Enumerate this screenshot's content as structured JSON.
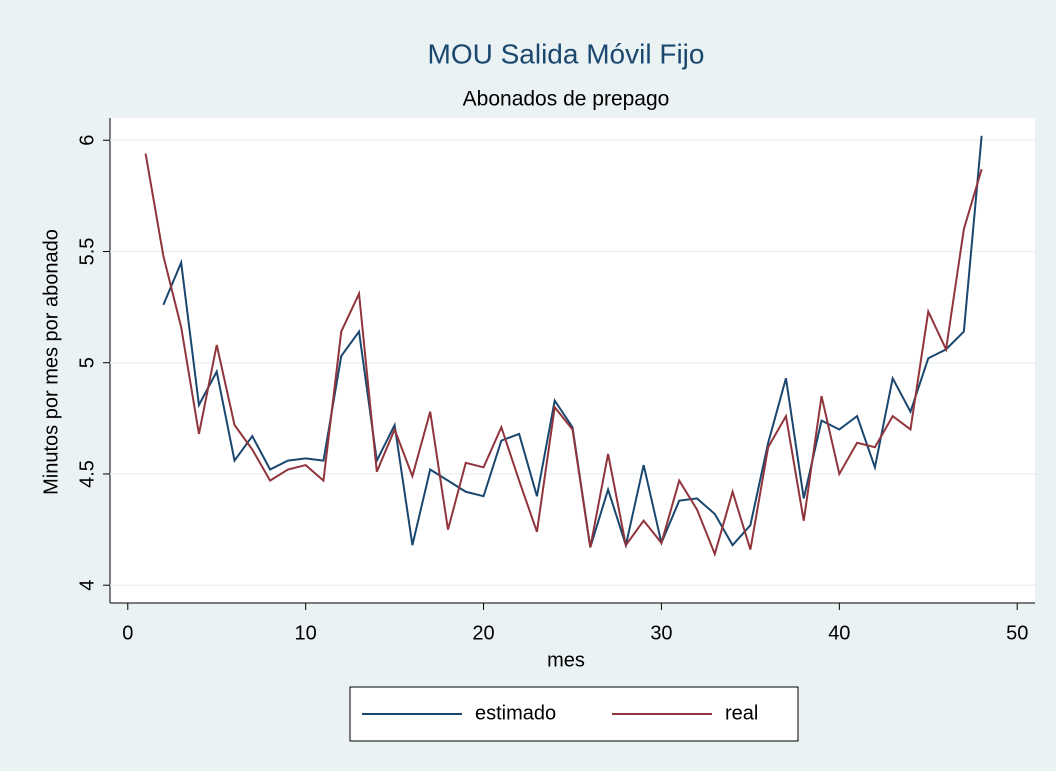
{
  "chart_data": {
    "type": "line",
    "title": "MOU Salida Móvil Fijo",
    "subtitle": "Abonados de prepago",
    "x_label": "mes",
    "y_label": "Minutos por mes por abonado",
    "x": [
      1,
      2,
      3,
      4,
      5,
      6,
      7,
      8,
      9,
      10,
      11,
      12,
      13,
      14,
      15,
      16,
      17,
      18,
      19,
      20,
      21,
      22,
      23,
      24,
      25,
      26,
      27,
      28,
      29,
      30,
      31,
      32,
      33,
      34,
      35,
      36,
      37,
      38,
      39,
      40,
      41,
      42,
      43,
      44,
      45,
      46,
      47,
      48
    ],
    "series": [
      {
        "name": "estimado",
        "color": "#1a476f",
        "values": [
          null,
          5.26,
          5.45,
          4.81,
          4.96,
          4.56,
          4.67,
          4.52,
          4.56,
          4.57,
          4.56,
          5.03,
          5.14,
          4.56,
          4.72,
          4.18,
          4.52,
          4.47,
          4.42,
          4.4,
          4.65,
          4.68,
          4.4,
          4.83,
          4.71,
          4.17,
          4.43,
          4.18,
          4.54,
          4.19,
          4.38,
          4.39,
          4.32,
          4.18,
          4.27,
          4.64,
          4.93,
          4.39,
          4.74,
          4.7,
          4.76,
          4.53,
          4.93,
          4.78,
          5.02,
          5.06,
          5.14,
          6.02
        ]
      },
      {
        "name": "real",
        "color": "#90353b",
        "values": [
          5.94,
          5.48,
          5.16,
          4.68,
          5.08,
          4.72,
          4.61,
          4.47,
          4.52,
          4.54,
          4.47,
          5.14,
          5.31,
          4.51,
          4.7,
          4.49,
          4.78,
          4.25,
          4.55,
          4.53,
          4.71,
          4.47,
          4.24,
          4.8,
          4.7,
          4.17,
          4.59,
          4.18,
          4.29,
          4.19,
          4.47,
          4.34,
          4.14,
          4.42,
          4.16,
          4.62,
          4.76,
          4.29,
          4.85,
          4.5,
          4.64,
          4.62,
          4.76,
          4.7,
          5.23,
          5.06,
          5.6,
          5.87
        ]
      }
    ],
    "xlim": [
      -1,
      51
    ],
    "xticks": [
      0,
      10,
      20,
      30,
      40,
      50
    ],
    "ylim": [
      3.92,
      6.1
    ],
    "yticks": [
      4,
      4.5,
      5,
      5.5,
      6
    ],
    "grid": true
  }
}
